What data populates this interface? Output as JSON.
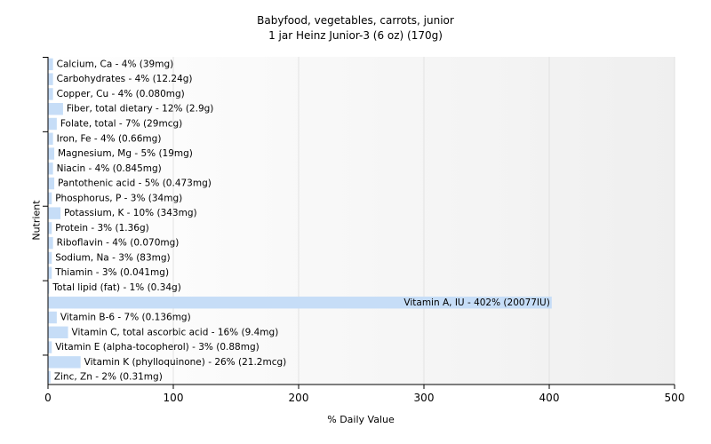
{
  "chart_data": {
    "type": "bar",
    "orientation": "horizontal",
    "title": "Babyfood, vegetables, carrots, junior",
    "subtitle": "1 jar Heinz Junior-3 (6 oz) (170g)",
    "xlabel": "% Daily Value",
    "ylabel": "Nutrient",
    "xlim": [
      0,
      500
    ],
    "xticks": [
      0,
      100,
      200,
      300,
      400,
      500
    ],
    "grid": true,
    "bar_color": "#c6ddf7",
    "categories": [
      "Calcium, Ca",
      "Carbohydrates",
      "Copper, Cu",
      "Fiber, total dietary",
      "Folate, total",
      "Iron, Fe",
      "Magnesium, Mg",
      "Niacin",
      "Pantothenic acid",
      "Phosphorus, P",
      "Potassium, K",
      "Protein",
      "Riboflavin",
      "Sodium, Na",
      "Thiamin",
      "Total lipid (fat)",
      "Vitamin A, IU",
      "Vitamin B-6",
      "Vitamin C, total ascorbic acid",
      "Vitamin E (alpha-tocopherol)",
      "Vitamin K (phylloquinone)",
      "Zinc, Zn"
    ],
    "values": [
      4,
      4,
      4,
      12,
      7,
      4,
      5,
      4,
      5,
      3,
      10,
      3,
      4,
      3,
      3,
      1,
      402,
      7,
      16,
      3,
      26,
      2
    ],
    "labels": [
      "Calcium, Ca - 4% (39mg)",
      "Carbohydrates - 4% (12.24g)",
      "Copper, Cu - 4% (0.080mg)",
      "Fiber, total dietary - 12% (2.9g)",
      "Folate, total - 7% (29mcg)",
      "Iron, Fe - 4% (0.66mg)",
      "Magnesium, Mg - 5% (19mg)",
      "Niacin - 4% (0.845mg)",
      "Pantothenic acid - 5% (0.473mg)",
      "Phosphorus, P - 3% (34mg)",
      "Potassium, K - 10% (343mg)",
      "Protein - 3% (1.36g)",
      "Riboflavin - 4% (0.070mg)",
      "Sodium, Na - 3% (83mg)",
      "Thiamin - 3% (0.041mg)",
      "Total lipid (fat) - 1% (0.34g)",
      "Vitamin A, IU - 402% (20077IU)",
      "Vitamin B-6 - 7% (0.136mg)",
      "Vitamin C, total ascorbic acid - 16% (9.4mg)",
      "Vitamin E (alpha-tocopherol) - 3% (0.88mg)",
      "Vitamin K (phylloquinone) - 26% (21.2mcg)",
      "Zinc, Zn - 2% (0.31mg)"
    ]
  }
}
